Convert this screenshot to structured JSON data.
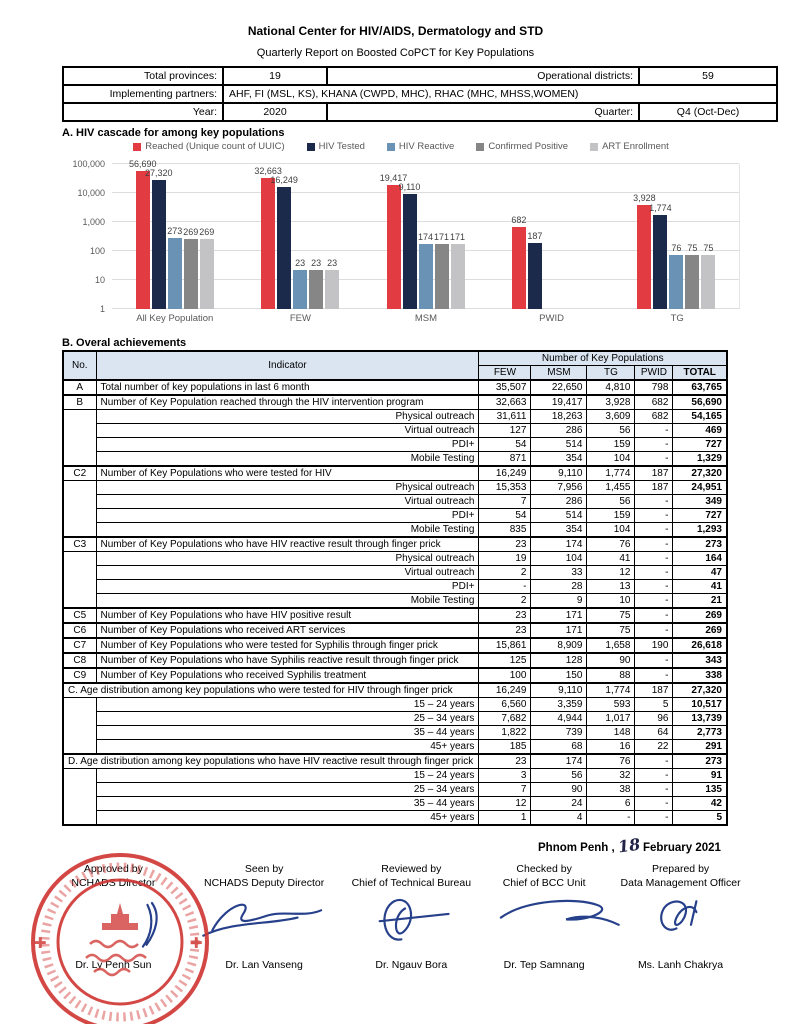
{
  "header": {
    "title": "National Center for HIV/AIDS, Dermatology and STD",
    "subtitle": "Quarterly Report on Boosted CoPCT for Key Populations",
    "info": {
      "total_provinces_label": "Total provinces:",
      "total_provinces": "19",
      "operational_districts_label": "Operational districts:",
      "operational_districts": "59",
      "implementing_partners_label": "Implementing partners:",
      "implementing_partners": "AHF, FI (MSL, KS), KHANA (CWPD, MHC), RHAC (MHC, MHSS,WOMEN)",
      "year_label": "Year:",
      "year": "2020",
      "quarter_label": "Quarter:",
      "quarter": "Q4 (Oct-Dec)"
    }
  },
  "section_a": {
    "heading": "A. HIV cascade for among key populations"
  },
  "chart_data": {
    "type": "bar",
    "y_scale": "log",
    "ylim": [
      1,
      100000
    ],
    "y_ticks_bottom_up": [
      "1",
      "10",
      "100",
      "1,000",
      "10,000",
      "100,000"
    ],
    "grid": true,
    "legend_position": "top",
    "categories": [
      "All Key Population",
      "FEW",
      "MSM",
      "PWID",
      "TG"
    ],
    "series": [
      {
        "name": "Reached (Unique count of UUIC)",
        "color": "#e23b41",
        "values": [
          56690,
          32663,
          19417,
          682,
          3928
        ]
      },
      {
        "name": "HIV Tested",
        "color": "#1b2a4b",
        "values": [
          27320,
          16249,
          9110,
          187,
          1774
        ]
      },
      {
        "name": "HIV Reactive",
        "color": "#6a92b4",
        "values": [
          273,
          23,
          174,
          null,
          76
        ]
      },
      {
        "name": "Confirmed Positive",
        "color": "#868686",
        "values": [
          269,
          23,
          171,
          null,
          75
        ]
      },
      {
        "name": "ART Enrollment",
        "color": "#c3c3c6",
        "values": [
          269,
          23,
          171,
          null,
          75
        ]
      }
    ]
  },
  "section_b": {
    "heading": "B. Overal achievements",
    "col_headers": {
      "no": "No.",
      "indicator": "Indicator",
      "group": "Number of Key Populations",
      "cols": [
        "FEW",
        "MSM",
        "TG",
        "PWID",
        "TOTAL"
      ]
    },
    "rows": [
      {
        "type": "main",
        "no": "A",
        "label": "Total number of key populations in last 6 month",
        "values": [
          "35,507",
          "22,650",
          "4,810",
          "798",
          "63,765"
        ]
      },
      {
        "type": "main",
        "no": "B",
        "label": "Number of Key Population reached through the HIV intervention program",
        "values": [
          "32,663",
          "19,417",
          "3,928",
          "682",
          "56,690"
        ]
      },
      {
        "type": "sub",
        "nospan": 4,
        "label": "Physical outreach",
        "values": [
          "31,611",
          "18,263",
          "3,609",
          "682",
          "54,165"
        ]
      },
      {
        "type": "sub",
        "label": "Virtual outreach",
        "values": [
          "127",
          "286",
          "56",
          "-",
          "469"
        ]
      },
      {
        "type": "sub",
        "label": "PDI+",
        "values": [
          "54",
          "514",
          "159",
          "-",
          "727"
        ]
      },
      {
        "type": "sub",
        "label": "Mobile Testing",
        "values": [
          "871",
          "354",
          "104",
          "-",
          "1,329"
        ]
      },
      {
        "type": "main",
        "no": "C2",
        "label": "Number of Key Populations who were tested for HIV",
        "values": [
          "16,249",
          "9,110",
          "1,774",
          "187",
          "27,320"
        ]
      },
      {
        "type": "sub",
        "nospan": 4,
        "label": "Physical outreach",
        "values": [
          "15,353",
          "7,956",
          "1,455",
          "187",
          "24,951"
        ]
      },
      {
        "type": "sub",
        "label": "Virtual outreach",
        "values": [
          "7",
          "286",
          "56",
          "-",
          "349"
        ]
      },
      {
        "type": "sub",
        "label": "PDI+",
        "values": [
          "54",
          "514",
          "159",
          "-",
          "727"
        ]
      },
      {
        "type": "sub",
        "label": "Mobile Testing",
        "values": [
          "835",
          "354",
          "104",
          "-",
          "1,293"
        ]
      },
      {
        "type": "main",
        "no": "C3",
        "label": "Number of Key Populations who have HIV reactive result through finger prick",
        "values": [
          "23",
          "174",
          "76",
          "-",
          "273"
        ]
      },
      {
        "type": "sub",
        "nospan": 4,
        "label": "Physical outreach",
        "values": [
          "19",
          "104",
          "41",
          "-",
          "164"
        ]
      },
      {
        "type": "sub",
        "label": "Virtual outreach",
        "values": [
          "2",
          "33",
          "12",
          "-",
          "47"
        ]
      },
      {
        "type": "sub",
        "label": "PDI+",
        "values": [
          "-",
          "28",
          "13",
          "-",
          "41"
        ]
      },
      {
        "type": "sub",
        "label": "Mobile Testing",
        "values": [
          "2",
          "9",
          "10",
          "-",
          "21"
        ]
      },
      {
        "type": "main",
        "no": "C5",
        "label": "Number of Key Populations who have HIV positive result",
        "values": [
          "23",
          "171",
          "75",
          "-",
          "269"
        ]
      },
      {
        "type": "main",
        "no": "C6",
        "label": "Number of Key Populations who received ART services",
        "values": [
          "23",
          "171",
          "75",
          "-",
          "269"
        ]
      },
      {
        "type": "main",
        "no": "C7",
        "label": "Number of Key Populations who were tested for Syphilis through finger prick",
        "values": [
          "15,861",
          "8,909",
          "1,658",
          "190",
          "26,618"
        ]
      },
      {
        "type": "main",
        "no": "C8",
        "label": "Number of Key Populations who have Syphilis reactive result through finger prick",
        "values": [
          "125",
          "128",
          "90",
          "-",
          "343"
        ]
      },
      {
        "type": "main",
        "no": "C9",
        "label": "Number of Key Populations who received Syphilis treatment",
        "values": [
          "100",
          "150",
          "88",
          "-",
          "338"
        ]
      },
      {
        "type": "section",
        "label": "C. Age distribution among key populations who were tested for HIV through finger prick",
        "values": [
          "16,249",
          "9,110",
          "1,774",
          "187",
          "27,320"
        ]
      },
      {
        "type": "sub",
        "nospan": 4,
        "label": "15 – 24 years",
        "values": [
          "6,560",
          "3,359",
          "593",
          "5",
          "10,517"
        ]
      },
      {
        "type": "sub",
        "label": "25 – 34 years",
        "values": [
          "7,682",
          "4,944",
          "1,017",
          "96",
          "13,739"
        ]
      },
      {
        "type": "sub",
        "label": "35 – 44 years",
        "values": [
          "1,822",
          "739",
          "148",
          "64",
          "2,773"
        ]
      },
      {
        "type": "sub",
        "label": "45+ years",
        "values": [
          "185",
          "68",
          "16",
          "22",
          "291"
        ]
      },
      {
        "type": "section",
        "label": "D. Age distribution among key populations who have HIV reactive result through finger prick",
        "values": [
          "23",
          "174",
          "76",
          "-",
          "273"
        ]
      },
      {
        "type": "sub",
        "nospan": 4,
        "label": "15 – 24 years",
        "values": [
          "3",
          "56",
          "32",
          "-",
          "91"
        ]
      },
      {
        "type": "sub",
        "label": "25 – 34 years",
        "values": [
          "7",
          "90",
          "38",
          "-",
          "135"
        ]
      },
      {
        "type": "sub",
        "label": "35 – 44 years",
        "values": [
          "12",
          "24",
          "6",
          "-",
          "42"
        ]
      },
      {
        "type": "sub",
        "label": "45+ years",
        "values": [
          "1",
          "4",
          "-",
          "-",
          "5"
        ]
      }
    ]
  },
  "footer": {
    "date_city": "Phnom Penh ,",
    "date_day": "18",
    "date_rest": "February 2021",
    "stamp_icon": "red-circular-official-stamp",
    "signatures": [
      {
        "title1": "Approved by",
        "title2": "NCHADS Director",
        "name": "Dr. Ly Penh Sun"
      },
      {
        "title1": "Seen by",
        "title2": "NCHADS Deputy Director",
        "name": "Dr. Lan Vanseng"
      },
      {
        "title1": "Reviewed by",
        "title2": "Chief of Technical Bureau",
        "name": "Dr. Ngauv Bora"
      },
      {
        "title1": "Checked by",
        "title2": "Chief of BCC Unit",
        "name": "Dr. Tep Samnang"
      },
      {
        "title1": "Prepared by",
        "title2": "Data Management Officer",
        "name": "Ms. Lanh Chakrya"
      }
    ]
  }
}
